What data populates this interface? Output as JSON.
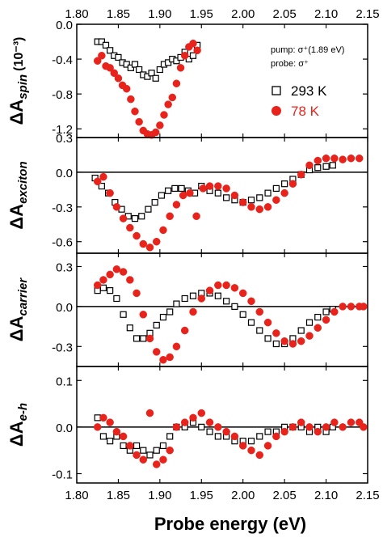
{
  "chart_data": {
    "type": "scatter",
    "x_axis": {
      "label": "Probe energy (eV)",
      "range": [
        1.8,
        2.15
      ],
      "ticks": [
        "1.80",
        "1.85",
        "1.90",
        "1.95",
        "2.00",
        "2.05",
        "2.10",
        "2.15"
      ],
      "top_ticks": [
        "1.80",
        "1.85",
        "1.90",
        "1.95",
        "2.00",
        "2.05",
        "2.10",
        "2.15"
      ]
    },
    "annotation": {
      "pump": "pump: σ⁺(1.89 eV)",
      "probe": "probe: σ⁺"
    },
    "legend": {
      "placement": "top-right of top panel",
      "entries": [
        {
          "label": "293 K",
          "marker": "open-square",
          "color": "#000000"
        },
        {
          "label": "78 K",
          "marker": "filled-circle",
          "color": "#e8231c"
        }
      ]
    },
    "panels": [
      {
        "key": "spin",
        "ylabel_main": "ΔA",
        "ylabel_sub": "spin",
        "ylabel_unit": "(10⁻³)",
        "ylim": [
          -1.3,
          0.0
        ],
        "yticks": [
          0.0,
          -0.4,
          -0.8,
          -1.2
        ],
        "ytick_labels": [
          "0.0",
          "-0.4",
          "-0.8",
          "-1.2"
        ],
        "zero_line": false,
        "series": [
          {
            "name": "293 K",
            "x": [
              1.825,
              1.83,
              1.835,
              1.84,
              1.845,
              1.85,
              1.855,
              1.86,
              1.865,
              1.87,
              1.875,
              1.88,
              1.885,
              1.89,
              1.895,
              1.9,
              1.905,
              1.91,
              1.915,
              1.92,
              1.925,
              1.93,
              1.935,
              1.94,
              1.945
            ],
            "y": [
              -0.2,
              -0.2,
              -0.24,
              -0.3,
              -0.36,
              -0.38,
              -0.44,
              -0.46,
              -0.5,
              -0.46,
              -0.52,
              -0.58,
              -0.6,
              -0.56,
              -0.62,
              -0.52,
              -0.46,
              -0.44,
              -0.4,
              -0.42,
              -0.38,
              -0.32,
              -0.4,
              -0.36,
              -0.24
            ]
          },
          {
            "name": "78 K",
            "x": [
              1.825,
              1.83,
              1.835,
              1.84,
              1.845,
              1.85,
              1.855,
              1.86,
              1.865,
              1.87,
              1.875,
              1.88,
              1.885,
              1.89,
              1.895,
              1.9,
              1.905,
              1.91,
              1.915,
              1.92,
              1.925,
              1.93,
              1.935,
              1.94,
              1.945
            ],
            "y": [
              -0.42,
              -0.36,
              -0.48,
              -0.5,
              -0.56,
              -0.62,
              -0.7,
              -0.74,
              -0.86,
              -1.0,
              -1.12,
              -1.22,
              -1.26,
              -1.27,
              -1.24,
              -1.16,
              -1.04,
              -0.92,
              -0.84,
              -0.68,
              -0.5,
              -0.36,
              -0.26,
              -0.22,
              -0.3
            ]
          }
        ]
      },
      {
        "key": "exciton",
        "ylabel_main": "ΔA",
        "ylabel_sub": "exciton",
        "ylabel_unit": "",
        "ylim": [
          -0.7,
          0.3
        ],
        "yticks": [
          0.3,
          0.0,
          -0.3,
          -0.6
        ],
        "ytick_labels": [
          "0.3",
          "0.0",
          "-0.3",
          "-0.6"
        ],
        "zero_line": true,
        "series": [
          {
            "name": "293 K",
            "x": [
              1.822,
              1.83,
              1.838,
              1.846,
              1.854,
              1.862,
              1.87,
              1.878,
              1.886,
              1.894,
              1.902,
              1.91,
              1.918,
              1.926,
              1.934,
              1.942,
              1.95,
              1.96,
              1.97,
              1.98,
              1.99,
              2.0,
              2.01,
              2.02,
              2.03,
              2.04,
              2.05,
              2.06,
              2.07,
              2.08,
              2.09,
              2.1,
              2.108
            ],
            "y": [
              -0.05,
              -0.12,
              -0.18,
              -0.26,
              -0.32,
              -0.38,
              -0.4,
              -0.38,
              -0.32,
              -0.26,
              -0.2,
              -0.16,
              -0.14,
              -0.14,
              -0.16,
              -0.18,
              -0.12,
              -0.16,
              -0.18,
              -0.22,
              -0.24,
              -0.26,
              -0.24,
              -0.22,
              -0.18,
              -0.14,
              -0.1,
              -0.06,
              -0.02,
              0.02,
              0.04,
              0.05,
              0.06
            ]
          },
          {
            "name": "78 K",
            "x": [
              1.825,
              1.832,
              1.84,
              1.848,
              1.856,
              1.864,
              1.872,
              1.88,
              1.888,
              1.896,
              1.904,
              1.912,
              1.92,
              1.928,
              1.936,
              1.944,
              1.952,
              1.96,
              1.97,
              1.98,
              1.99,
              2.0,
              2.01,
              2.02,
              2.03,
              2.04,
              2.05,
              2.06,
              2.07,
              2.08,
              2.09,
              2.1,
              2.11,
              2.12,
              2.13,
              2.14
            ],
            "y": [
              -0.08,
              -0.04,
              -0.18,
              -0.3,
              -0.4,
              -0.48,
              -0.55,
              -0.62,
              -0.65,
              -0.6,
              -0.5,
              -0.38,
              -0.28,
              -0.2,
              -0.18,
              -0.38,
              -0.14,
              -0.12,
              -0.12,
              -0.14,
              -0.2,
              -0.26,
              -0.3,
              -0.32,
              -0.3,
              -0.24,
              -0.18,
              -0.1,
              -0.02,
              0.06,
              0.1,
              0.12,
              0.12,
              0.11,
              0.12,
              0.12
            ]
          }
        ]
      },
      {
        "key": "carrier",
        "ylabel_main": "ΔA",
        "ylabel_sub": "carrier",
        "ylabel_unit": "",
        "ylim": [
          -0.45,
          0.4
        ],
        "yticks": [
          0.3,
          0.0,
          -0.3
        ],
        "ytick_labels": [
          "0.3",
          "0.0",
          "-0.3"
        ],
        "zero_line": true,
        "series": [
          {
            "name": "293 K",
            "x": [
              1.825,
              1.832,
              1.84,
              1.848,
              1.856,
              1.864,
              1.872,
              1.88,
              1.888,
              1.896,
              1.904,
              1.912,
              1.92,
              1.93,
              1.94,
              1.95,
              1.96,
              1.97,
              1.98,
              1.99,
              2.0,
              2.01,
              2.02,
              2.03,
              2.04,
              2.05,
              2.06,
              2.07,
              2.08,
              2.09,
              2.1,
              2.108
            ],
            "y": [
              0.12,
              0.14,
              0.12,
              0.06,
              -0.06,
              -0.16,
              -0.24,
              -0.24,
              -0.2,
              -0.14,
              -0.08,
              -0.04,
              0.02,
              0.06,
              0.08,
              0.1,
              0.1,
              0.08,
              0.04,
              0.0,
              -0.06,
              -0.12,
              -0.18,
              -0.24,
              -0.28,
              -0.28,
              -0.24,
              -0.18,
              -0.12,
              -0.08,
              -0.04,
              -0.02
            ]
          },
          {
            "name": "78 K",
            "x": [
              1.825,
              1.832,
              1.84,
              1.848,
              1.856,
              1.864,
              1.872,
              1.88,
              1.888,
              1.896,
              1.904,
              1.912,
              1.92,
              1.93,
              1.94,
              1.95,
              1.96,
              1.97,
              1.98,
              1.99,
              2.0,
              2.01,
              2.02,
              2.03,
              2.04,
              2.05,
              2.06,
              2.07,
              2.08,
              2.09,
              2.1,
              2.11,
              2.12,
              2.13,
              2.14,
              2.145
            ],
            "y": [
              0.16,
              0.2,
              0.24,
              0.28,
              0.26,
              0.2,
              0.1,
              -0.06,
              -0.24,
              -0.34,
              -0.4,
              -0.38,
              -0.3,
              -0.18,
              -0.04,
              0.06,
              0.12,
              0.16,
              0.16,
              0.14,
              0.1,
              0.04,
              -0.04,
              -0.12,
              -0.2,
              -0.26,
              -0.28,
              -0.26,
              -0.22,
              -0.16,
              -0.1,
              -0.04,
              0.0,
              0.0,
              0.0,
              0.0
            ]
          }
        ]
      },
      {
        "key": "e-h",
        "ylabel_main": "ΔA",
        "ylabel_sub": "e-h",
        "ylabel_unit": "",
        "ylim": [
          -0.12,
          0.13
        ],
        "yticks": [
          0.1,
          0.0,
          -0.1
        ],
        "ytick_labels": [
          "0.1",
          "0.0",
          "-0.1"
        ],
        "zero_line": true,
        "series": [
          {
            "name": "293 K",
            "x": [
              1.825,
              1.832,
              1.84,
              1.848,
              1.856,
              1.864,
              1.872,
              1.88,
              1.888,
              1.896,
              1.904,
              1.912,
              1.92,
              1.93,
              1.94,
              1.95,
              1.96,
              1.97,
              1.98,
              1.99,
              2.0,
              2.01,
              2.02,
              2.03,
              2.04,
              2.05,
              2.06,
              2.07,
              2.08,
              2.09,
              2.1,
              2.108
            ],
            "y": [
              0.02,
              -0.02,
              -0.03,
              -0.02,
              -0.04,
              -0.05,
              -0.04,
              -0.05,
              -0.06,
              -0.05,
              -0.04,
              -0.02,
              0.0,
              0.0,
              0.01,
              0.0,
              -0.01,
              -0.02,
              -0.02,
              -0.03,
              -0.03,
              -0.03,
              -0.02,
              -0.01,
              -0.01,
              0.0,
              0.0,
              0.0,
              -0.01,
              0.0,
              -0.01,
              0.0
            ]
          },
          {
            "name": "78 K",
            "x": [
              1.825,
              1.832,
              1.84,
              1.848,
              1.856,
              1.864,
              1.872,
              1.88,
              1.888,
              1.896,
              1.904,
              1.912,
              1.92,
              1.93,
              1.94,
              1.95,
              1.96,
              1.97,
              1.98,
              1.99,
              2.0,
              2.01,
              2.02,
              2.03,
              2.04,
              2.05,
              2.06,
              2.07,
              2.08,
              2.09,
              2.1,
              2.11,
              2.12,
              2.13,
              2.14,
              2.145
            ],
            "y": [
              0.0,
              0.02,
              0.01,
              -0.01,
              -0.02,
              -0.04,
              -0.06,
              -0.07,
              0.03,
              -0.08,
              -0.07,
              -0.05,
              0.0,
              0.01,
              0.02,
              0.03,
              0.01,
              0.0,
              -0.01,
              -0.02,
              -0.04,
              -0.05,
              -0.06,
              -0.04,
              -0.02,
              -0.01,
              0.0,
              0.01,
              0.0,
              -0.01,
              0.0,
              0.01,
              0.0,
              0.01,
              0.01,
              0.0
            ]
          }
        ]
      }
    ]
  }
}
